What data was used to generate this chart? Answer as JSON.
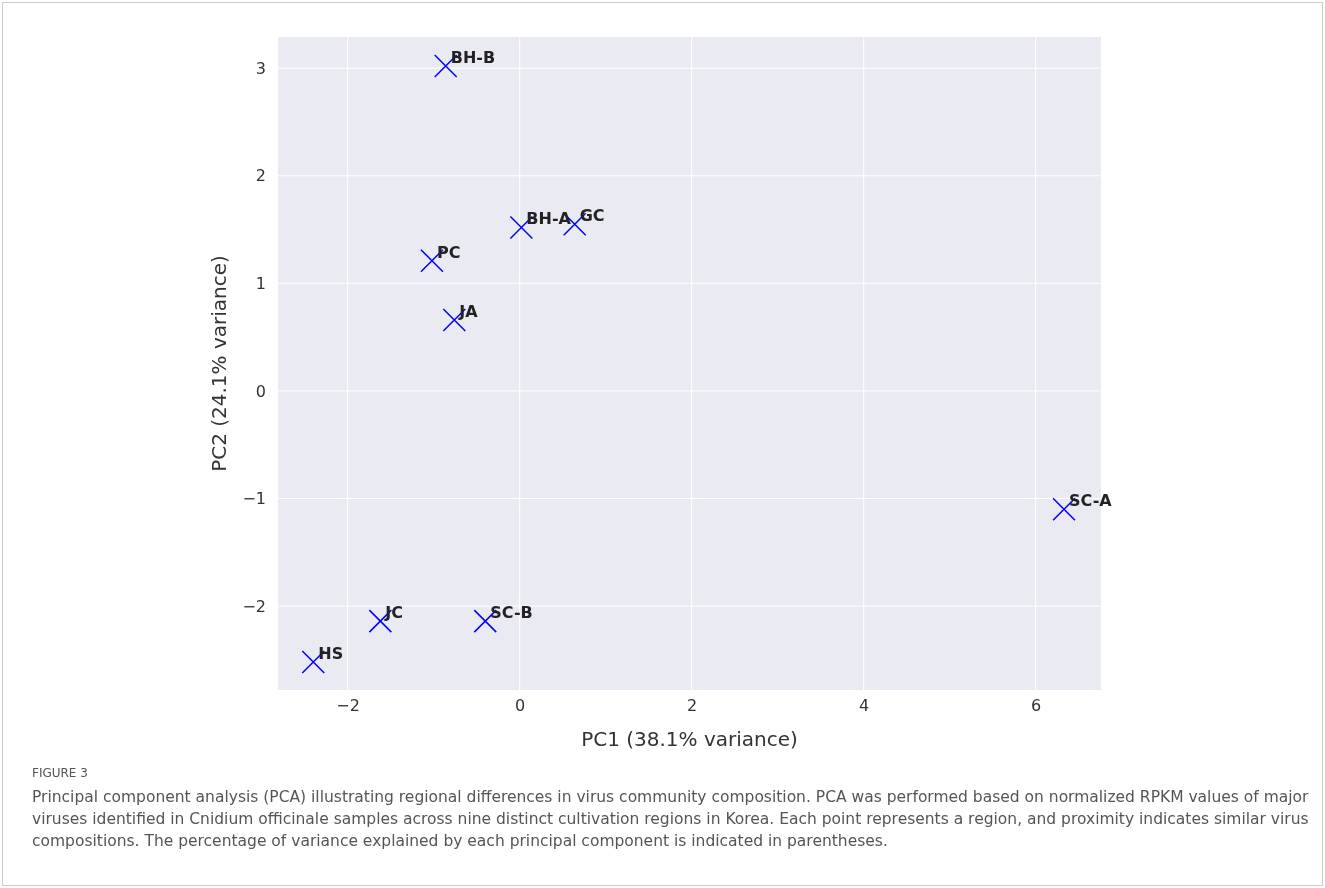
{
  "chart_data": {
    "type": "scatter",
    "xlabel": "PC1 (38.1% variance)",
    "ylabel": "PC2 (24.1% variance)",
    "x": [
      -0.86,
      0.02,
      0.64,
      -1.02,
      -0.76,
      6.33,
      -1.62,
      -0.4,
      -2.4
    ],
    "series": [
      {
        "color": "#0000ff",
        "values": [
          3.02,
          1.52,
          1.55,
          1.21,
          0.66,
          -1.1,
          -2.14,
          -2.14,
          -2.52
        ]
      }
    ],
    "marker": "cross",
    "grid": true,
    "xlim": [
      -2.81,
      6.76
    ],
    "ylim": [
      -2.78,
      3.29
    ],
    "xticks": [
      {
        "value": -2,
        "label": "−2"
      },
      0,
      2,
      4,
      6
    ],
    "yticks": [
      {
        "value": -2,
        "label": "−2"
      },
      {
        "value": -1,
        "label": "−1"
      },
      0,
      1,
      2,
      3
    ],
    "annotations": [
      {
        "text": "BH-B",
        "x": -0.86,
        "y": 3.02
      },
      {
        "text": "BH-A",
        "x": 0.02,
        "y": 1.52
      },
      {
        "text": "GC",
        "x": 0.64,
        "y": 1.55
      },
      {
        "text": "PC",
        "x": -1.02,
        "y": 1.21
      },
      {
        "text": "JA",
        "x": -0.76,
        "y": 0.66
      },
      {
        "text": "SC-A",
        "x": 6.33,
        "y": -1.1
      },
      {
        "text": "JC",
        "x": -1.62,
        "y": -2.14
      },
      {
        "text": "SC-B",
        "x": -0.4,
        "y": -2.14
      },
      {
        "text": "HS",
        "x": -2.4,
        "y": -2.52
      },
      "FIGURE 3",
      "Principal component analysis (PCA) illustrating regional differences in virus community composition. PCA was performed based on normalized RPKM values of major viruses identified in Cnidium officinale samples across nine distinct cultivation regions in Korea. Each point represents a region, and proximity indicates similar virus compositions. The percentage of variance explained by each principal component is indicated in parentheses."
    ]
  }
}
